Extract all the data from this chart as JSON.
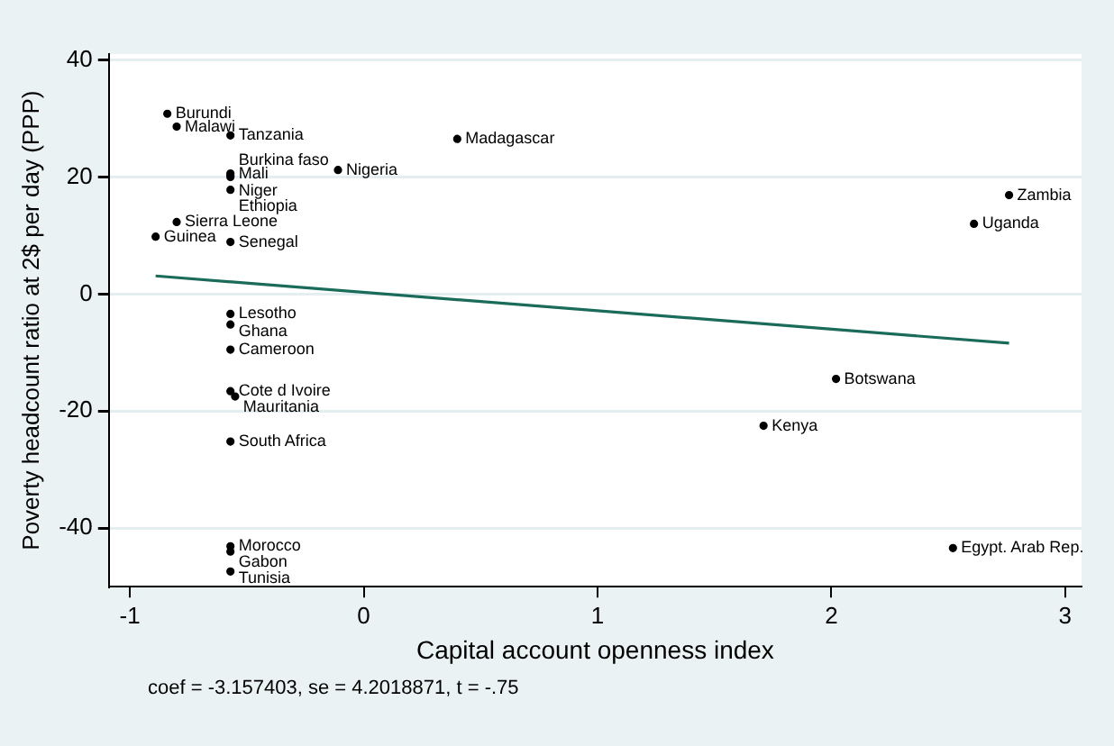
{
  "chart_data": {
    "type": "scatter",
    "xlabel": "Capital account openness index",
    "ylabel": "Poverty headcount ratio at 2$ per day (PPP)",
    "xlim": [
      -1.09,
      3.07
    ],
    "ylim": [
      -50,
      41
    ],
    "xticks": [
      -1,
      0,
      1,
      2,
      3
    ],
    "yticks": [
      -40,
      -20,
      0,
      20,
      40
    ],
    "grid": "y",
    "legend": false,
    "marker": "circle",
    "series": [
      {
        "type": "scatter",
        "color": "#000000",
        "x": [
          -0.84,
          -0.8,
          -0.57,
          0.4,
          -0.57,
          -0.57,
          -0.57,
          -0.11,
          -0.57,
          -0.8,
          -0.89,
          -0.57,
          -0.57,
          -0.57,
          -0.57,
          -0.57,
          -0.55,
          -0.57,
          -0.57,
          -0.57,
          -0.57,
          2.76,
          2.61,
          2.02,
          1.71,
          2.52
        ],
        "values": [
          30.8,
          28.6,
          27.1,
          26.5,
          20.6,
          20.3,
          20.0,
          21.2,
          17.8,
          12.3,
          9.8,
          8.9,
          -3.4,
          -5.2,
          -9.5,
          -16.6,
          -17.5,
          -25.2,
          -43.1,
          -44.0,
          -47.4,
          16.9,
          12.0,
          -14.5,
          -22.5,
          -43.4
        ]
      },
      {
        "type": "line",
        "color": "#1a6b5a",
        "x": [
          -0.89,
          2.76
        ],
        "values": [
          3.1,
          -8.4
        ],
        "marker": "none"
      }
    ],
    "annotations": [
      {
        "text": "Burundi",
        "x": -0.84,
        "y": 30.8
      },
      {
        "text": "Malawi",
        "x": -0.8,
        "y": 28.6
      },
      {
        "text": "Tanzania",
        "x": -0.57,
        "y": 27.1
      },
      {
        "text": "Madagascar",
        "x": 0.4,
        "y": 26.5
      },
      {
        "text": "Mali",
        "x": -0.57,
        "y": 20.6
      },
      {
        "text": "Niger",
        "x": -0.57,
        "y": 20.3
      },
      {
        "text": "Burkina faso",
        "x": -0.57,
        "y": 20.0
      },
      {
        "text": "Nigeria",
        "x": -0.11,
        "y": 21.2
      },
      {
        "text": "Ethiopia",
        "x": -0.57,
        "y": 17.8
      },
      {
        "text": "Sierra Leone",
        "x": -0.8,
        "y": 12.3
      },
      {
        "text": "Guinea",
        "x": -0.89,
        "y": 9.8
      },
      {
        "text": "Senegal",
        "x": -0.57,
        "y": 8.9
      },
      {
        "text": "Lesotho",
        "x": -0.57,
        "y": -3.4
      },
      {
        "text": "Ghana",
        "x": -0.57,
        "y": -5.2
      },
      {
        "text": "Cameroon",
        "x": -0.57,
        "y": -9.5
      },
      {
        "text": "Cote d Ivoire",
        "x": -0.57,
        "y": -16.6
      },
      {
        "text": "Mauritania",
        "x": -0.55,
        "y": -17.5
      },
      {
        "text": "South Africa",
        "x": -0.57,
        "y": -25.2
      },
      {
        "text": "Morocco",
        "x": -0.57,
        "y": -43.1
      },
      {
        "text": "Gabon",
        "x": -0.57,
        "y": -44.0
      },
      {
        "text": "Tunisia",
        "x": -0.57,
        "y": -47.4
      },
      {
        "text": "Zambia",
        "x": 2.76,
        "y": 16.9
      },
      {
        "text": "Uganda",
        "x": 2.61,
        "y": 12.0
      },
      {
        "text": "Botswana",
        "x": 2.02,
        "y": -14.5
      },
      {
        "text": "Kenya",
        "x": 1.71,
        "y": -22.5
      },
      {
        "text": "Egypt. Arab Rep.",
        "x": 2.52,
        "y": -43.4
      },
      "coef = -3.157403, se = 4.2018871, t = -.75"
    ]
  }
}
